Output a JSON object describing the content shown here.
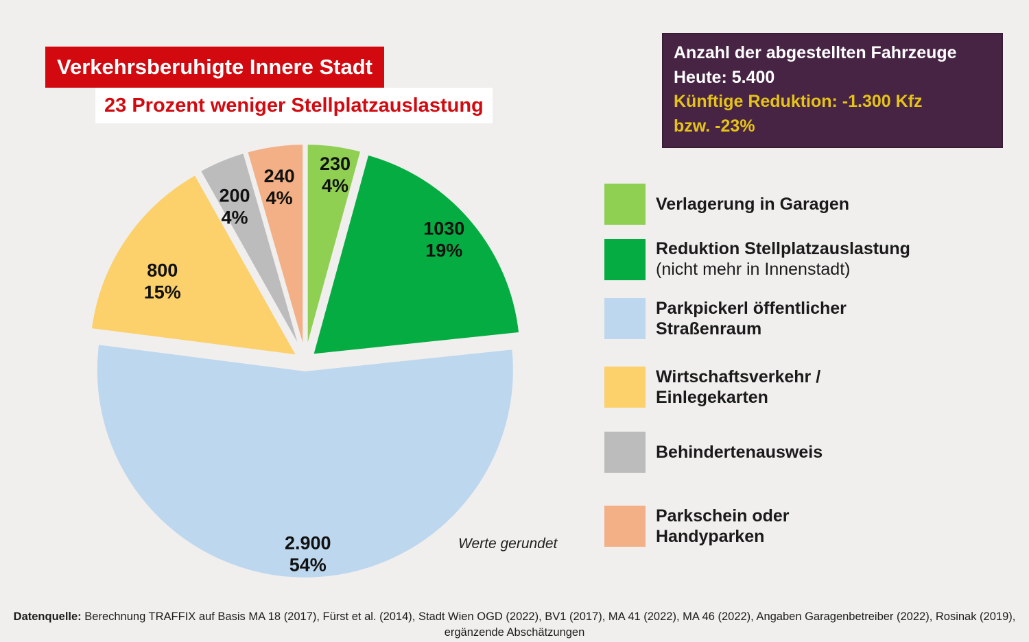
{
  "colors": {
    "background": "#F0EFED",
    "red": "#D20A10",
    "purple": "#482444",
    "gold": "#E5C417",
    "text": "#1A1A1A"
  },
  "header": {
    "title": "Verkehrsberuhigte Innere Stadt",
    "subtitle": "23 Prozent weniger Stellplatzauslastung"
  },
  "info_box": {
    "white_lines": [
      "Anzahl der abgestellten Fahrzeuge",
      "Heute: 5.400"
    ],
    "yellow_lines": [
      "Künftige Reduktion: -1.300 Kfz",
      "bzw. -23%"
    ]
  },
  "chart_data": {
    "type": "pie",
    "title": "Verkehrsberuhigte Innere Stadt – 23 Prozent weniger Stellplatzauslastung",
    "total": 5400,
    "start_angle_deg": 0,
    "note": "Werte gerundet",
    "legend_position": "right",
    "slices": [
      {
        "label": "Verlagerung in Garagen",
        "value": 230,
        "value_label": "230",
        "pct": 4,
        "pct_label": "4%",
        "color": "#8FD053"
      },
      {
        "label": "Reduktion Stellplatzauslastung (nicht mehr in Innenstadt)",
        "value": 1030,
        "value_label": "1030",
        "pct": 19,
        "pct_label": "19%",
        "color": "#04AC41"
      },
      {
        "label": "Parkpickerl öffentlicher Straßenraum",
        "value": 2900,
        "value_label": "2.900",
        "pct": 54,
        "pct_label": "54%",
        "color": "#BDD7EE"
      },
      {
        "label": "Wirtschaftsverkehr / Einlegekarten",
        "value": 800,
        "value_label": "800",
        "pct": 15,
        "pct_label": "15%",
        "color": "#FCD06B"
      },
      {
        "label": "Behindertenausweis",
        "value": 200,
        "value_label": "200",
        "pct": 4,
        "pct_label": "4%",
        "color": "#BCBCBC"
      },
      {
        "label": "Parkschein oder Handyparken",
        "value": 240,
        "value_label": "240",
        "pct": 4,
        "pct_label": "4%",
        "color": "#F3AF85"
      }
    ]
  },
  "note": "Werte gerundet",
  "legend": {
    "items": [
      {
        "color": "#8FD053",
        "lines": [
          "Verlagerung in Garagen"
        ],
        "sub": ""
      },
      {
        "color": "#04AC41",
        "lines": [
          "Reduktion Stellplatzauslastung"
        ],
        "sub": "(nicht mehr in Innenstadt)"
      },
      {
        "color": "#BDD7EE",
        "lines": [
          "Parkpickerl öffentlicher",
          "Straßenraum"
        ],
        "sub": ""
      },
      {
        "color": "#FCD06B",
        "lines": [
          "Wirtschaftsverkehr /",
          "Einlegekarten"
        ],
        "sub": ""
      },
      {
        "color": "#BCBCBC",
        "lines": [
          "Behindertenausweis"
        ],
        "sub": ""
      },
      {
        "color": "#F3AF85",
        "lines": [
          "Parkschein oder",
          "Handyparken"
        ],
        "sub": ""
      }
    ]
  },
  "footer": {
    "label": "Datenquelle:",
    "text_line1": " Berechnung TRAFFIX auf Basis MA 18 (2017), Fürst et al. (2014), Stadt Wien OGD (2022), BV1 (2017), MA 41 (2022), MA 46 (2022), Angaben Garagenbetreiber (2022), Rosinak (2019),",
    "text_line2": "ergänzende Abschätzungen"
  }
}
